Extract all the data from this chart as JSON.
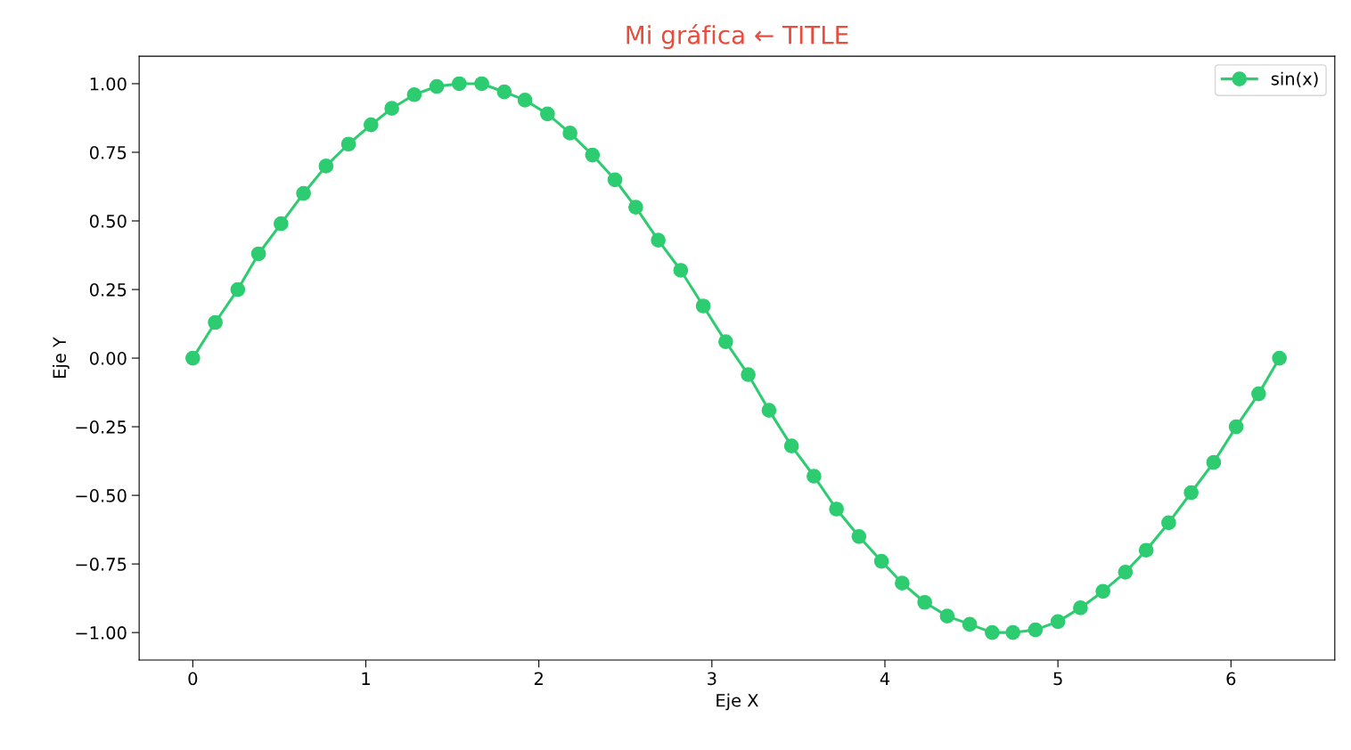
{
  "chart_data": {
    "type": "line",
    "title": "Mi gráfica ← TITLE",
    "xlabel": "Eje X",
    "ylabel": "Eje Y",
    "x": [
      0,
      0.13,
      0.26,
      0.38,
      0.51,
      0.64,
      0.77,
      0.9,
      1.03,
      1.15,
      1.28,
      1.41,
      1.54,
      1.67,
      1.8,
      1.92,
      2.05,
      2.18,
      2.31,
      2.44,
      2.56,
      2.69,
      2.82,
      2.95,
      3.08,
      3.21,
      3.33,
      3.46,
      3.59,
      3.72,
      3.85,
      3.98,
      4.1,
      4.23,
      4.36,
      4.49,
      4.62,
      4.74,
      4.87,
      5.0,
      5.13,
      5.26,
      5.39,
      5.51,
      5.64,
      5.77,
      5.9,
      6.03,
      6.16,
      6.28
    ],
    "series": [
      {
        "name": "sin(x)",
        "color": "#2ecc71",
        "values": [
          0,
          0.13,
          0.25,
          0.38,
          0.49,
          0.6,
          0.7,
          0.78,
          0.85,
          0.91,
          0.96,
          0.99,
          1.0,
          1.0,
          0.97,
          0.94,
          0.89,
          0.82,
          0.74,
          0.65,
          0.55,
          0.43,
          0.32,
          0.19,
          0.06,
          -0.06,
          -0.19,
          -0.32,
          -0.43,
          -0.55,
          -0.65,
          -0.74,
          -0.82,
          -0.89,
          -0.94,
          -0.97,
          -1.0,
          -1.0,
          -0.99,
          -0.96,
          -0.91,
          -0.85,
          -0.78,
          -0.7,
          -0.6,
          -0.49,
          -0.38,
          -0.25,
          -0.13,
          0
        ]
      }
    ],
    "xlim": [
      -0.31,
      6.6
    ],
    "ylim": [
      -1.1,
      1.1
    ],
    "xticks": [
      0,
      1,
      2,
      3,
      4,
      5,
      6
    ],
    "yticks": [
      {
        "value": -1,
        "label": "−1.00"
      },
      {
        "value": -0.75,
        "label": "−0.75"
      },
      {
        "value": -0.5,
        "label": "−0.50"
      },
      {
        "value": -0.25,
        "label": "−0.25"
      },
      {
        "value": 0,
        "label": "0.00"
      },
      {
        "value": 0.25,
        "label": "0.25"
      },
      {
        "value": 0.5,
        "label": "0.50"
      },
      {
        "value": 0.75,
        "label": "0.75"
      },
      {
        "value": 1,
        "label": "1.00"
      }
    ],
    "marker": "circle",
    "line_style": "solid",
    "legend": "top right",
    "grid": false
  }
}
